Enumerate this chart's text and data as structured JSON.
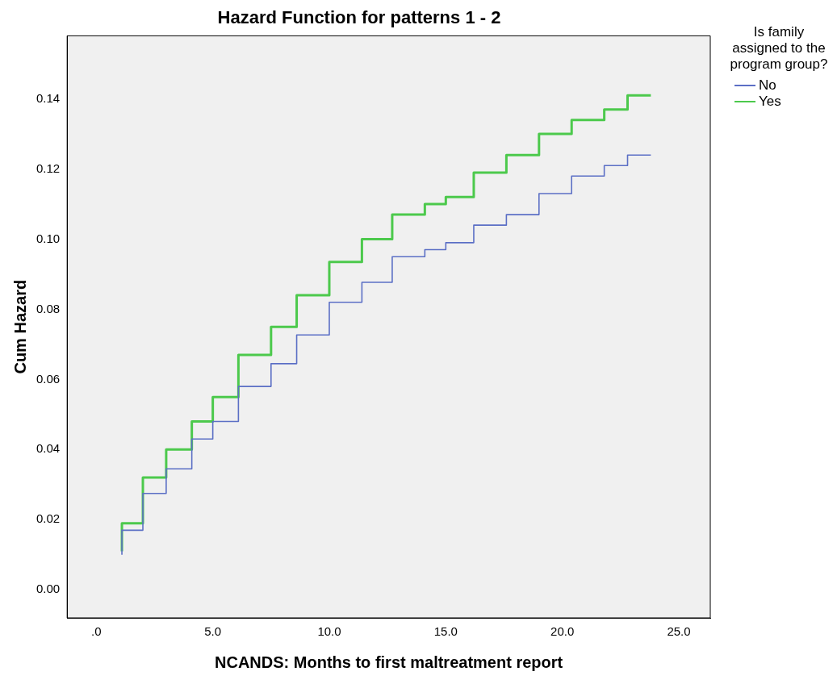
{
  "chart_data": {
    "type": "step",
    "title": "Hazard Function for patterns 1 - 2",
    "xlabel": "NCANDS: Months to first maltreatment report",
    "ylabel": "Cum Hazard",
    "legend_title": "Is family assigned to the program group?",
    "legend": "right",
    "grid": false,
    "xlim": [
      -1.25,
      26.35
    ],
    "xticks": [
      {
        "value": 0,
        "label": ".0"
      },
      {
        "value": 5,
        "label": "5.0"
      },
      {
        "value": 10,
        "label": "10.0"
      },
      {
        "value": 15,
        "label": "15.0"
      },
      {
        "value": 20,
        "label": "20.0"
      },
      {
        "value": 25,
        "label": "25.0"
      }
    ],
    "ylim": [
      -0.008,
      0.158
    ],
    "yticks": [
      {
        "value": 0,
        "label": "0.00"
      },
      {
        "value": 0.02,
        "label": "0.02"
      },
      {
        "value": 0.04,
        "label": "0.04"
      },
      {
        "value": 0.06,
        "label": "0.06"
      },
      {
        "value": 0.08,
        "label": "0.08"
      },
      {
        "value": 0.1,
        "label": "0.10"
      },
      {
        "value": 0.12,
        "label": "0.12"
      },
      {
        "value": 0.14,
        "label": "0.14"
      }
    ],
    "series": [
      {
        "name": "No",
        "color": "#5b6fc5",
        "x": [
          1.1,
          2.0,
          3.0,
          4.1,
          5.0,
          6.1,
          7.5,
          8.6,
          10.0,
          11.4,
          12.7,
          14.1,
          15.0,
          16.2,
          17.6,
          19.0,
          20.4,
          21.8,
          22.8,
          23.8
        ],
        "values": [
          0.01,
          0.017,
          0.0275,
          0.0345,
          0.043,
          0.048,
          0.058,
          0.0645,
          0.0727,
          0.082,
          0.0877,
          0.095,
          0.097,
          0.099,
          0.104,
          0.107,
          0.113,
          0.118,
          0.121,
          0.124
        ]
      },
      {
        "name": "Yes",
        "color": "#4cc94c",
        "x": [
          1.1,
          2.0,
          3.0,
          4.1,
          5.0,
          6.1,
          7.5,
          8.6,
          10.0,
          11.4,
          12.7,
          14.1,
          15.0,
          16.2,
          17.6,
          19.0,
          20.4,
          21.8,
          22.8,
          23.8
        ],
        "values": [
          0.011,
          0.019,
          0.032,
          0.04,
          0.048,
          0.055,
          0.067,
          0.075,
          0.084,
          0.0935,
          0.1,
          0.107,
          0.11,
          0.112,
          0.119,
          0.124,
          0.13,
          0.134,
          0.137,
          0.141
        ]
      }
    ]
  }
}
